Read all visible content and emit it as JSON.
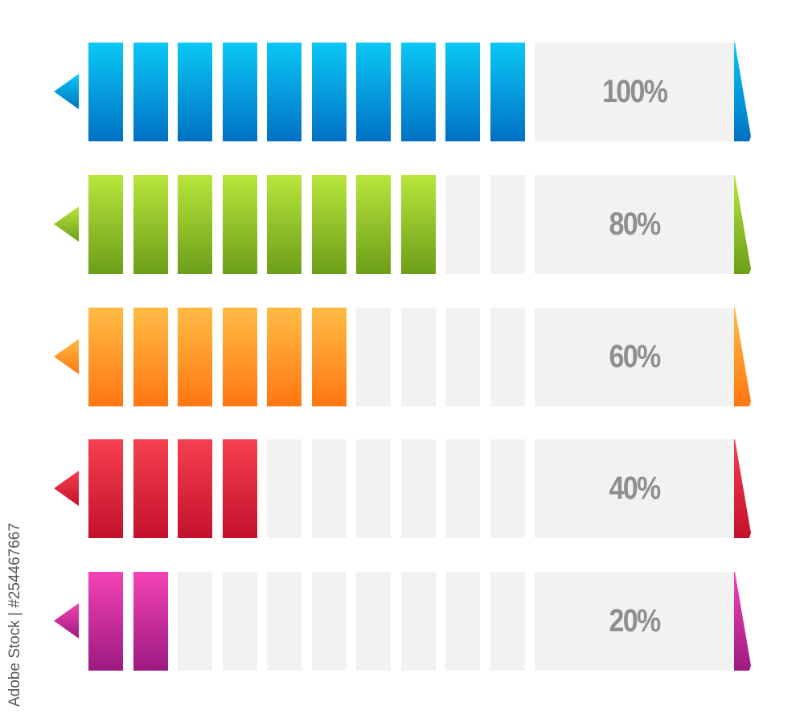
{
  "bars": [
    {
      "label": "100%",
      "value": 100,
      "filled_segments": 10,
      "color_top": "#0ac8f5",
      "color_bottom": "#0070c4"
    },
    {
      "label": "80%",
      "value": 80,
      "filled_segments": 8,
      "color_top": "#b8e63c",
      "color_bottom": "#6c9e18"
    },
    {
      "label": "60%",
      "value": 60,
      "filled_segments": 6,
      "color_top": "#ffbc45",
      "color_bottom": "#ff7612"
    },
    {
      "label": "40%",
      "value": 40,
      "filled_segments": 4,
      "color_top": "#f5404f",
      "color_bottom": "#c4102c"
    },
    {
      "label": "20%",
      "value": 20,
      "filled_segments": 2,
      "color_top": "#f442b4",
      "color_bottom": "#9c1a80"
    }
  ],
  "total_segments": 10,
  "empty_color": "#f2f2f2",
  "label_color": "#8f8f8f",
  "watermark": "Adobe Stock | #254467667"
}
